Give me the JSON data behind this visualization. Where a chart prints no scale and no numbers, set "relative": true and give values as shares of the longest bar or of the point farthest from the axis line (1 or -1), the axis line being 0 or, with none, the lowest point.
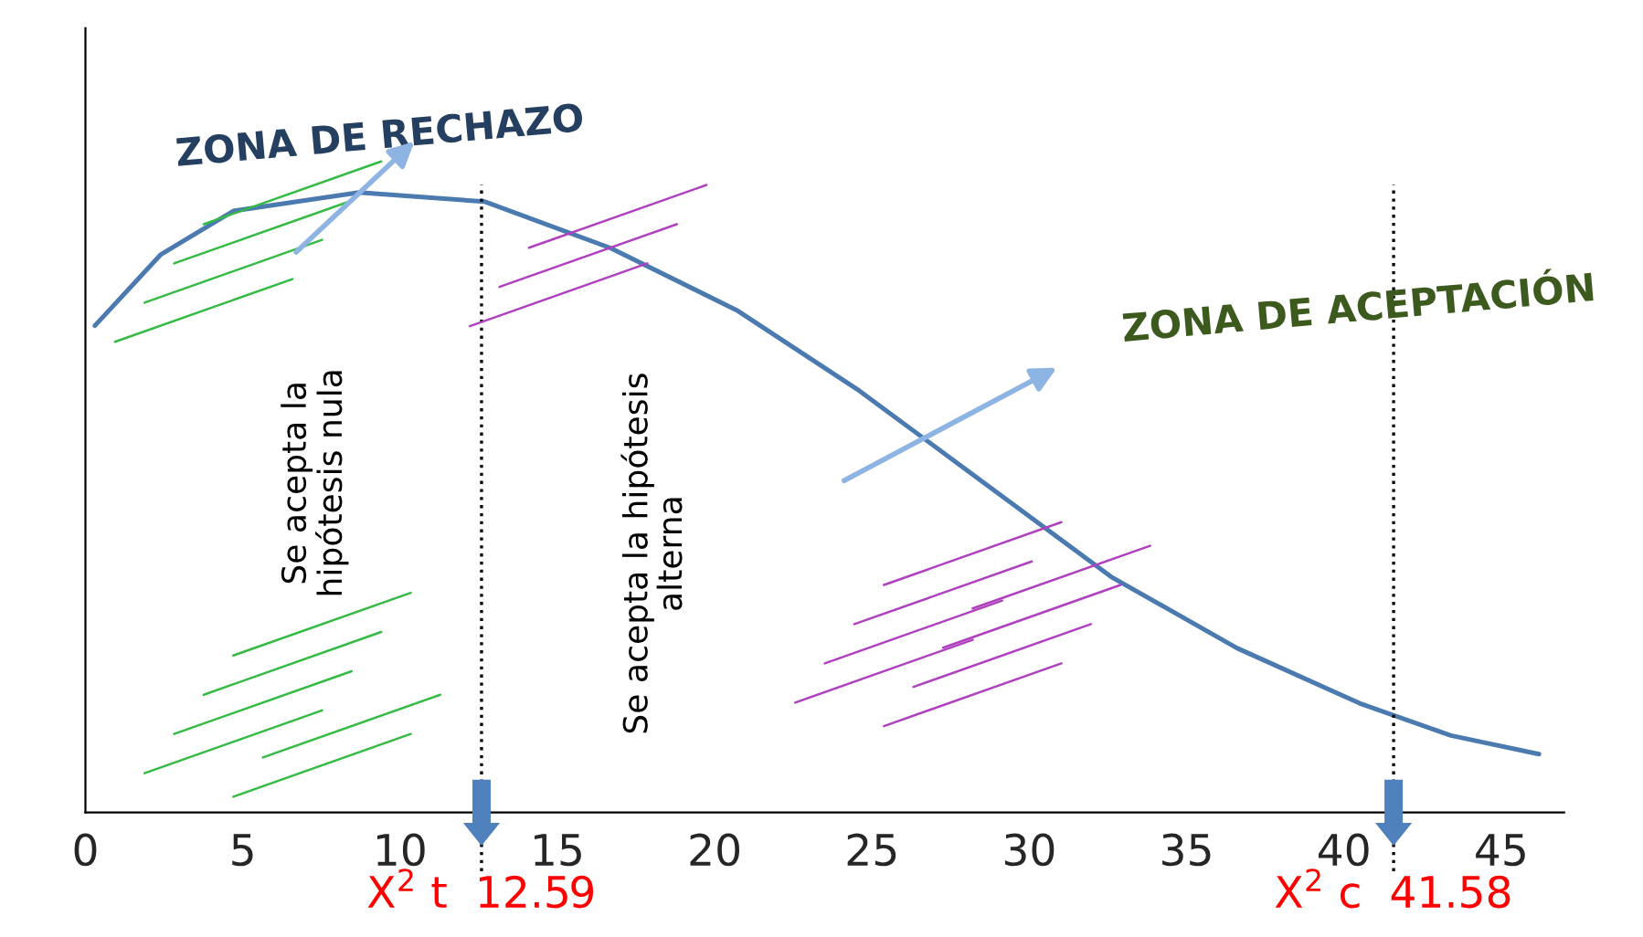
{
  "chart_data": {
    "type": "line",
    "relative": true,
    "x": [
      0.3,
      2.4,
      4.7,
      8.7,
      12.7,
      16.7,
      20.7,
      24.6,
      28.6,
      32.6,
      36.6,
      40.5,
      43.4,
      46.2
    ],
    "series": [
      {
        "color": "#4a7ab0",
        "values": [
          0.785,
          0.9,
          0.97,
          1.0,
          0.985,
          0.91,
          0.81,
          0.68,
          0.53,
          0.38,
          0.265,
          0.176,
          0.124,
          0.094
        ]
      }
    ],
    "xlim": [
      0,
      47
    ],
    "xticks": [
      0,
      5,
      10,
      15,
      20,
      25,
      30,
      35,
      40,
      45
    ],
    "ref_lines": [
      {
        "axis": "x",
        "value": 12.59,
        "label": "X$^{2}$ t  12.59",
        "color": "#000000",
        "line_style": "dotted"
      },
      {
        "axis": "x",
        "value": 41.58,
        "label": "X$^{2}$ c  41.58",
        "color": "#000000",
        "line_style": "dotted"
      }
    ],
    "annotations": [
      "ZONA DE RECHAZO",
      "ZONA DE ACEPTACIÓN",
      "Se acepta la\nhipótesis nula",
      "Se acepta la hipótesis\nalterna"
    ],
    "grid": false,
    "legend": false,
    "marker": "none",
    "line_style": "solid"
  }
}
